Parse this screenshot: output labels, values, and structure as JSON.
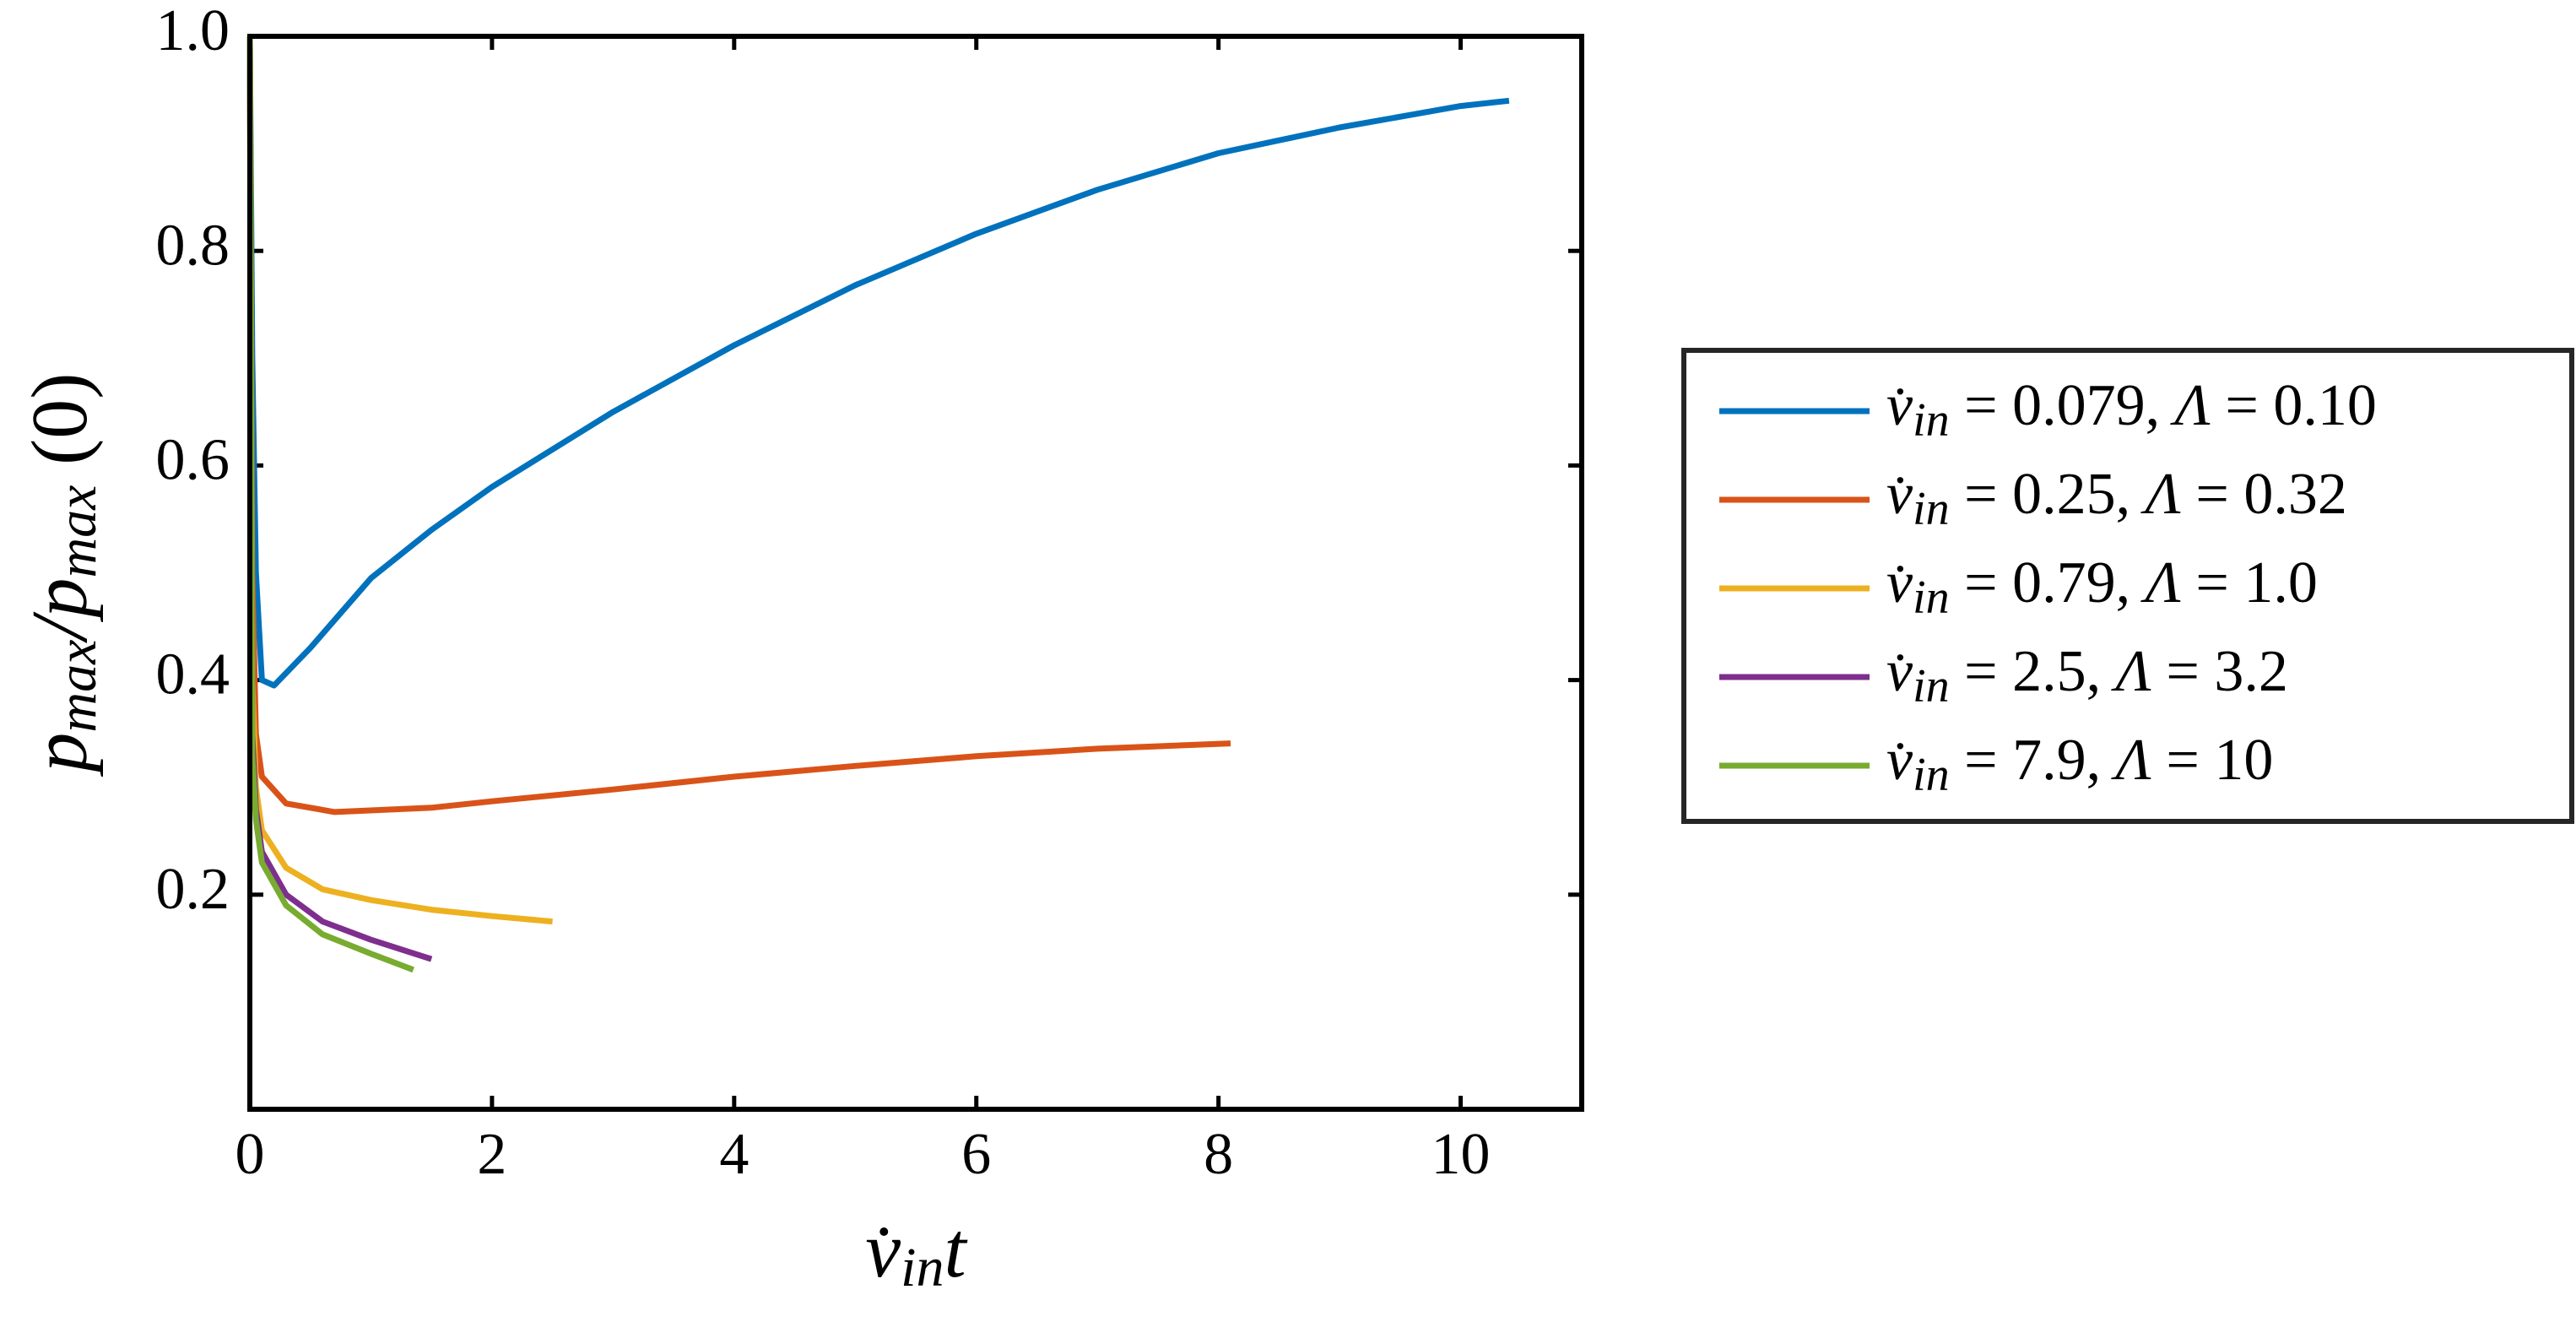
{
  "chart_data": {
    "type": "line",
    "xlabel": [
      "v̇",
      "in",
      "t"
    ],
    "ylabel": [
      "p",
      "max",
      "/",
      "p",
      "max",
      " (0)"
    ],
    "xlim": [
      0,
      11
    ],
    "ylim": [
      0,
      1
    ],
    "xticks": [
      0,
      2,
      4,
      6,
      8,
      10
    ],
    "yticks": [
      0.2,
      0.4,
      0.6,
      0.8,
      {
        "value": 1,
        "label": "1.0"
      }
    ],
    "legend": "right",
    "series": [
      {
        "name": "v̇in = 0.079, Λ = 0.10",
        "color": "#0072bd",
        "x": [
          0,
          0.02,
          0.05,
          0.1,
          0.2,
          0.5,
          1,
          1.5,
          2,
          3,
          4,
          5,
          6,
          7,
          8,
          9,
          10,
          10.4
        ],
        "values": [
          1.0,
          0.7,
          0.5,
          0.4,
          0.395,
          0.43,
          0.495,
          0.54,
          0.58,
          0.65,
          0.712,
          0.768,
          0.816,
          0.857,
          0.891,
          0.915,
          0.935,
          0.94
        ]
      },
      {
        "name": "v̇in = 0.25, Λ = 0.32",
        "color": "#d95319",
        "x": [
          0,
          0.02,
          0.05,
          0.1,
          0.3,
          0.7,
          1.5,
          2,
          3,
          4,
          5,
          6,
          7,
          8.1
        ],
        "values": [
          1.0,
          0.5,
          0.35,
          0.31,
          0.285,
          0.277,
          0.281,
          0.287,
          0.298,
          0.31,
          0.32,
          0.329,
          0.336,
          0.341
        ]
      },
      {
        "name": "v̇in = 0.79, Λ = 1.0",
        "color": "#edb120",
        "x": [
          0,
          0.02,
          0.05,
          0.1,
          0.3,
          0.6,
          1,
          1.5,
          2,
          2.5
        ],
        "values": [
          1.0,
          0.4,
          0.3,
          0.26,
          0.225,
          0.205,
          0.195,
          0.186,
          0.18,
          0.175
        ]
      },
      {
        "name": "v̇in = 2.5, Λ = 3.2",
        "color": "#7e2f8e",
        "x": [
          0,
          0.02,
          0.05,
          0.1,
          0.3,
          0.6,
          1,
          1.5
        ],
        "values": [
          1.0,
          0.35,
          0.28,
          0.24,
          0.2,
          0.175,
          0.158,
          0.14
        ]
      },
      {
        "name": "v̇in = 7.9, Λ = 10",
        "color": "#77ac30",
        "x": [
          0,
          0.02,
          0.05,
          0.1,
          0.3,
          0.6,
          1,
          1.35
        ],
        "values": [
          1.0,
          0.33,
          0.27,
          0.23,
          0.19,
          0.163,
          0.145,
          0.13
        ]
      }
    ]
  }
}
